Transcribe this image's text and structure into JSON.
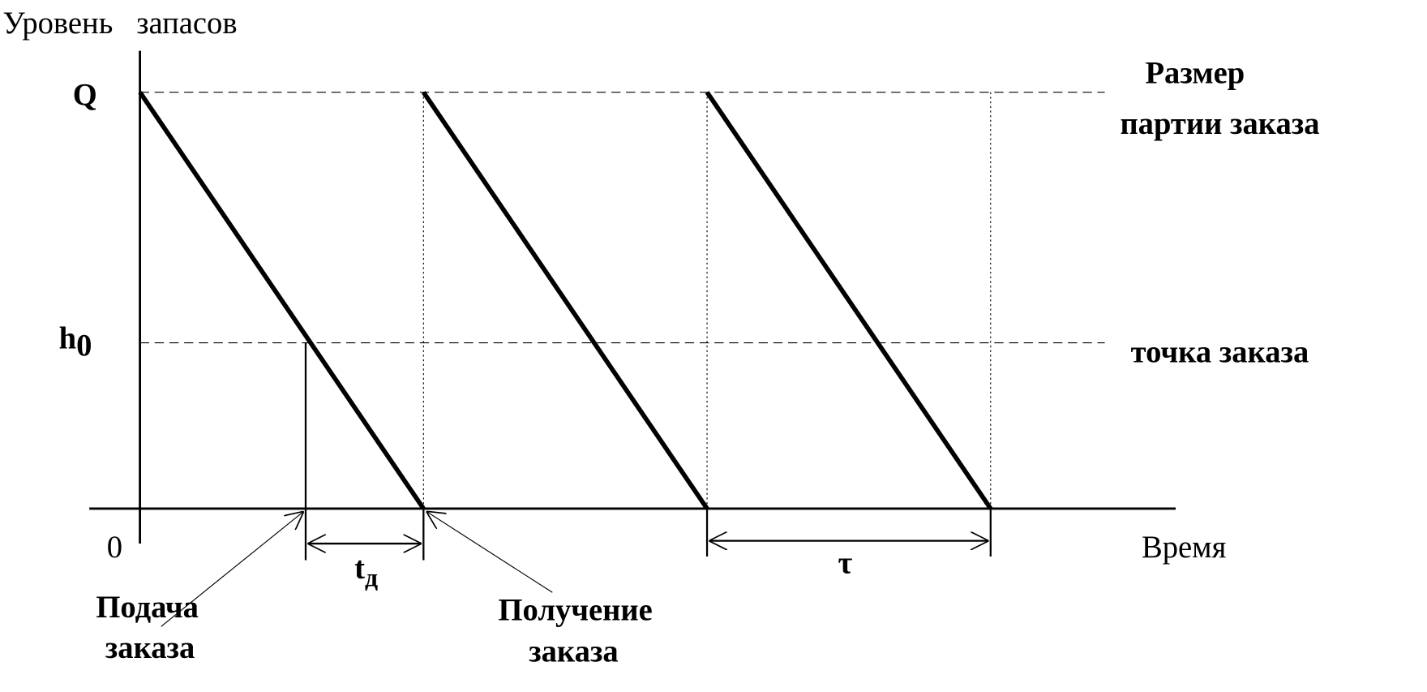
{
  "y_axis_label": "Уровень   запасов",
  "x_axis_label": "Время",
  "origin_label": "0",
  "levels": {
    "q": {
      "label": "Q",
      "note_lines": [
        "Размер",
        "партии заказа"
      ]
    },
    "h0": {
      "label": "h",
      "subscript": "0",
      "note": "точка заказа"
    }
  },
  "intervals": {
    "lead_time": {
      "label": "t",
      "subscript": "д"
    },
    "cycle": {
      "label": "τ"
    }
  },
  "callouts": {
    "order_placed": [
      "Подача",
      "заказа"
    ],
    "order_received": [
      "Получение",
      "заказа"
    ]
  }
}
